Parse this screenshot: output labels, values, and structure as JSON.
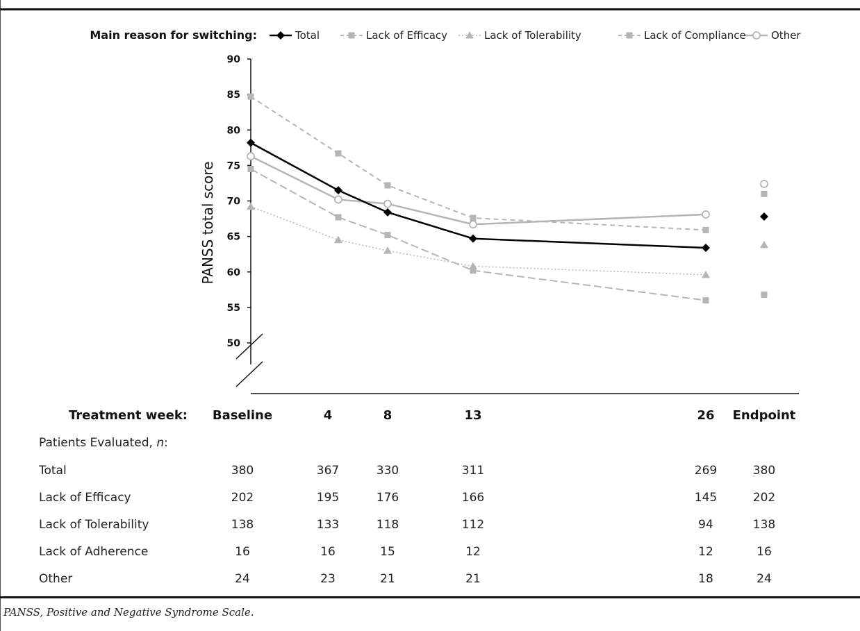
{
  "chart_data": {
    "type": "line",
    "legend_title": "Main reason for switching:",
    "ylabel": "PANSS total score",
    "ylim": [
      50,
      90
    ],
    "yticks": [
      50,
      55,
      60,
      65,
      70,
      75,
      80,
      85,
      90
    ],
    "x_axis_title": "Treatment week:",
    "categories": [
      "Baseline",
      "4",
      "8",
      "13",
      "26"
    ],
    "x_weeks": [
      0,
      4,
      8,
      13,
      26
    ],
    "endpoint_label": "Endpoint",
    "legend_placement": "top",
    "series": [
      {
        "name": "Total",
        "values": [
          78.2,
          71.5,
          68.4,
          64.7,
          63.4
        ],
        "endpoint": 67.8,
        "color": "#000000",
        "marker": "diamond",
        "dash": "solid",
        "width": 2.5
      },
      {
        "name": "Lack of Efficacy",
        "values": [
          84.7,
          76.7,
          72.2,
          67.6,
          65.9
        ],
        "endpoint": 71.0,
        "color": "#b5b5b5",
        "marker": "square",
        "dash": "7,5",
        "width": 2
      },
      {
        "name": "Lack of Tolerability",
        "values": [
          69.2,
          64.5,
          63.0,
          60.8,
          59.6
        ],
        "endpoint": 63.8,
        "color": "#b5b5b5",
        "marker": "triangle",
        "dash": "2,3",
        "width": 1.5
      },
      {
        "name": "Lack of Compliance",
        "values": [
          74.5,
          67.7,
          65.2,
          60.2,
          56.0
        ],
        "endpoint": 56.8,
        "color": "#b5b5b5",
        "marker": "square",
        "dash": "11,5",
        "width": 2
      },
      {
        "name": "Other",
        "values": [
          76.3,
          70.2,
          69.6,
          66.7,
          68.1
        ],
        "endpoint": 72.4,
        "color": "#b5b5b5",
        "marker": "circle",
        "dash": "solid",
        "width": 2.5
      }
    ]
  },
  "table": {
    "header_label": "Patients Evaluated, n:",
    "columns": [
      "Baseline",
      "4",
      "8",
      "13",
      "26",
      "Endpoint"
    ],
    "rows": [
      {
        "label": "Total",
        "values": [
          "380",
          "367",
          "330",
          "311",
          "269",
          "380"
        ]
      },
      {
        "label": "Lack of Efficacy",
        "values": [
          "202",
          "195",
          "176",
          "166",
          "145",
          "202"
        ]
      },
      {
        "label": "Lack of Tolerability",
        "values": [
          "138",
          "133",
          "118",
          "112",
          "94",
          "138"
        ]
      },
      {
        "label": "Lack of Adherence",
        "values": [
          "16",
          "16",
          "15",
          "12",
          "12",
          "16"
        ]
      },
      {
        "label": "Other",
        "values": [
          "24",
          "23",
          "21",
          "21",
          "18",
          "24"
        ]
      }
    ]
  },
  "caption": "PANSS, Positive and Negative Syndrome Scale."
}
